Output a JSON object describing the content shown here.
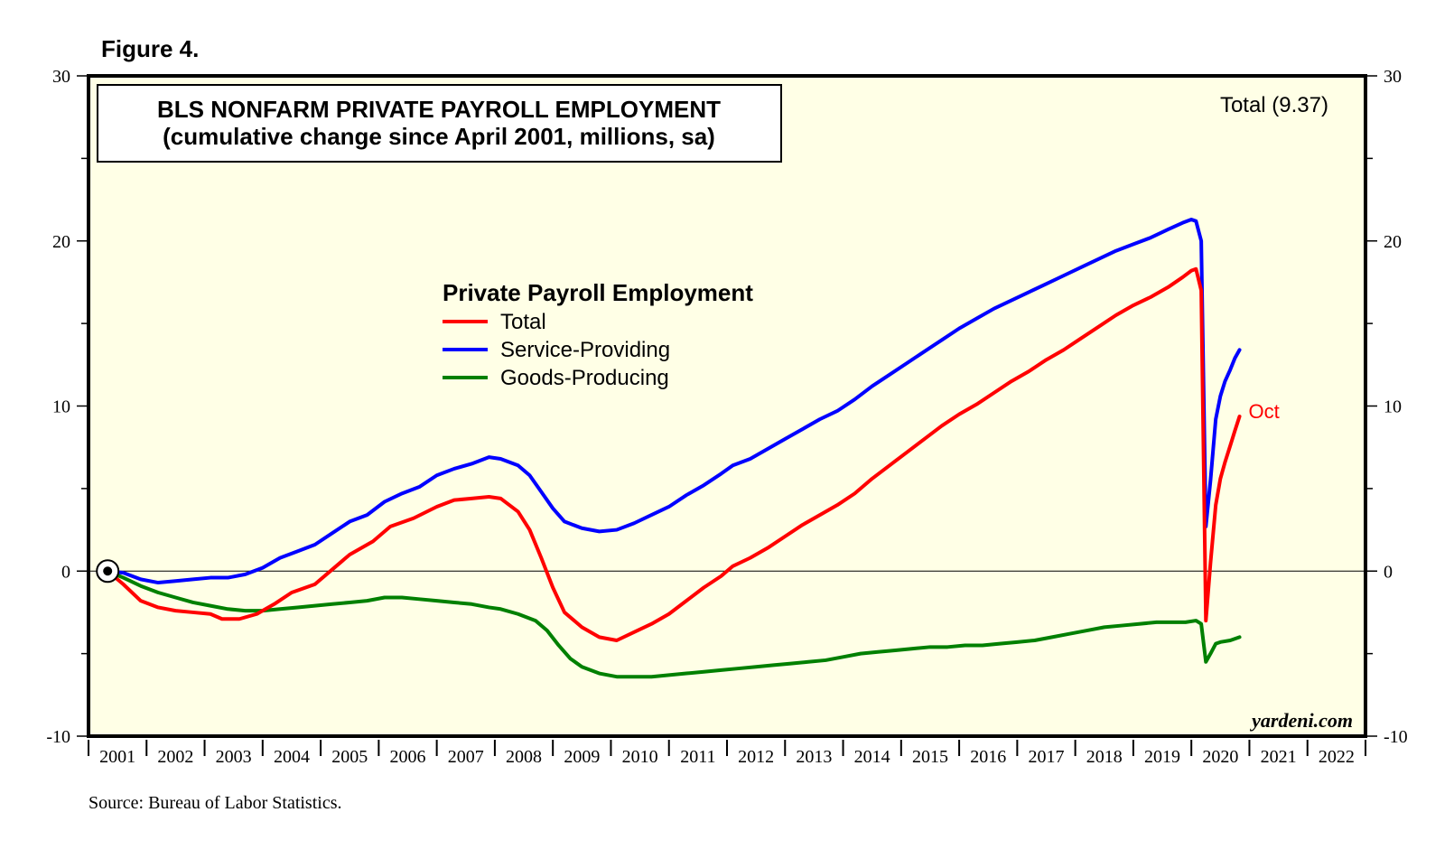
{
  "figure_label": "Figure 4.",
  "source": "Source: Bureau of Labor Statistics.",
  "watermark": "yardeni.com",
  "latest_label": "Total (9.37)",
  "end_annotation": "Oct",
  "colors": {
    "plot_bg": "#ffffe6",
    "total": "#ff0000",
    "service": "#0000ff",
    "goods": "#008000",
    "frame": "#000000"
  },
  "chart_data": {
    "type": "line",
    "title": "BLS NONFARM PRIVATE PAYROLL EMPLOYMENT",
    "subtitle": "(cumulative change since April 2001, millions, sa)",
    "legend_title": "Private Payroll Employment",
    "xlabel": "",
    "ylabel": "",
    "xlim": [
      2001.0,
      2023.0
    ],
    "ylim": [
      -10,
      30
    ],
    "y_ticks": [
      -10,
      0,
      10,
      20,
      30
    ],
    "y_tick_labels": [
      "-10",
      "0",
      "10",
      "20",
      "30"
    ],
    "x_tick_labels": [
      "2001",
      "2002",
      "2003",
      "2004",
      "2005",
      "2006",
      "2007",
      "2008",
      "2009",
      "2010",
      "2011",
      "2012",
      "2013",
      "2014",
      "2015",
      "2016",
      "2017",
      "2018",
      "2019",
      "2020",
      "2021",
      "2022"
    ],
    "grid": false,
    "zero_line": true,
    "origin_marker": [
      2001.33,
      0
    ],
    "series": [
      {
        "name": "Total",
        "color": "#ff0000",
        "points": [
          [
            2001.33,
            0
          ],
          [
            2001.6,
            -0.8
          ],
          [
            2001.9,
            -1.8
          ],
          [
            2002.2,
            -2.2
          ],
          [
            2002.5,
            -2.4
          ],
          [
            2002.8,
            -2.5
          ],
          [
            2003.1,
            -2.6
          ],
          [
            2003.3,
            -2.9
          ],
          [
            2003.6,
            -2.9
          ],
          [
            2003.9,
            -2.6
          ],
          [
            2004.2,
            -2.0
          ],
          [
            2004.5,
            -1.3
          ],
          [
            2004.9,
            -0.8
          ],
          [
            2005.2,
            0.1
          ],
          [
            2005.5,
            1.0
          ],
          [
            2005.9,
            1.8
          ],
          [
            2006.2,
            2.7
          ],
          [
            2006.6,
            3.2
          ],
          [
            2007.0,
            3.9
          ],
          [
            2007.3,
            4.3
          ],
          [
            2007.6,
            4.4
          ],
          [
            2007.9,
            4.5
          ],
          [
            2008.1,
            4.4
          ],
          [
            2008.4,
            3.6
          ],
          [
            2008.6,
            2.5
          ],
          [
            2008.8,
            0.8
          ],
          [
            2009.0,
            -1.0
          ],
          [
            2009.2,
            -2.5
          ],
          [
            2009.5,
            -3.4
          ],
          [
            2009.8,
            -4.0
          ],
          [
            2010.1,
            -4.2
          ],
          [
            2010.4,
            -3.7
          ],
          [
            2010.7,
            -3.2
          ],
          [
            2011.0,
            -2.6
          ],
          [
            2011.3,
            -1.8
          ],
          [
            2011.6,
            -1.0
          ],
          [
            2011.9,
            -0.3
          ],
          [
            2012.1,
            0.3
          ],
          [
            2012.4,
            0.8
          ],
          [
            2012.7,
            1.4
          ],
          [
            2013.0,
            2.1
          ],
          [
            2013.3,
            2.8
          ],
          [
            2013.6,
            3.4
          ],
          [
            2013.9,
            4.0
          ],
          [
            2014.2,
            4.7
          ],
          [
            2014.5,
            5.6
          ],
          [
            2014.8,
            6.4
          ],
          [
            2015.1,
            7.2
          ],
          [
            2015.4,
            8.0
          ],
          [
            2015.7,
            8.8
          ],
          [
            2016.0,
            9.5
          ],
          [
            2016.3,
            10.1
          ],
          [
            2016.6,
            10.8
          ],
          [
            2016.9,
            11.5
          ],
          [
            2017.2,
            12.1
          ],
          [
            2017.5,
            12.8
          ],
          [
            2017.8,
            13.4
          ],
          [
            2018.1,
            14.1
          ],
          [
            2018.4,
            14.8
          ],
          [
            2018.7,
            15.5
          ],
          [
            2019.0,
            16.1
          ],
          [
            2019.3,
            16.6
          ],
          [
            2019.6,
            17.2
          ],
          [
            2019.85,
            17.8
          ],
          [
            2020.0,
            18.2
          ],
          [
            2020.08,
            18.3
          ],
          [
            2020.17,
            17.0
          ],
          [
            2020.25,
            -3.0
          ],
          [
            2020.33,
            0.5
          ],
          [
            2020.42,
            4.0
          ],
          [
            2020.5,
            5.6
          ],
          [
            2020.58,
            6.6
          ],
          [
            2020.67,
            7.6
          ],
          [
            2020.75,
            8.5
          ],
          [
            2020.83,
            9.37
          ]
        ]
      },
      {
        "name": "Service-Providing",
        "color": "#0000ff",
        "points": [
          [
            2001.33,
            0
          ],
          [
            2001.6,
            -0.1
          ],
          [
            2001.9,
            -0.5
          ],
          [
            2002.2,
            -0.7
          ],
          [
            2002.5,
            -0.6
          ],
          [
            2002.8,
            -0.5
          ],
          [
            2003.1,
            -0.4
          ],
          [
            2003.4,
            -0.4
          ],
          [
            2003.7,
            -0.2
          ],
          [
            2004.0,
            0.2
          ],
          [
            2004.3,
            0.8
          ],
          [
            2004.6,
            1.2
          ],
          [
            2004.9,
            1.6
          ],
          [
            2005.2,
            2.3
          ],
          [
            2005.5,
            3.0
          ],
          [
            2005.8,
            3.4
          ],
          [
            2006.1,
            4.2
          ],
          [
            2006.4,
            4.7
          ],
          [
            2006.7,
            5.1
          ],
          [
            2007.0,
            5.8
          ],
          [
            2007.3,
            6.2
          ],
          [
            2007.6,
            6.5
          ],
          [
            2007.9,
            6.9
          ],
          [
            2008.1,
            6.8
          ],
          [
            2008.4,
            6.4
          ],
          [
            2008.6,
            5.8
          ],
          [
            2008.8,
            4.8
          ],
          [
            2009.0,
            3.8
          ],
          [
            2009.2,
            3.0
          ],
          [
            2009.5,
            2.6
          ],
          [
            2009.8,
            2.4
          ],
          [
            2010.1,
            2.5
          ],
          [
            2010.4,
            2.9
          ],
          [
            2010.7,
            3.4
          ],
          [
            2011.0,
            3.9
          ],
          [
            2011.3,
            4.6
          ],
          [
            2011.6,
            5.2
          ],
          [
            2011.9,
            5.9
          ],
          [
            2012.1,
            6.4
          ],
          [
            2012.4,
            6.8
          ],
          [
            2012.7,
            7.4
          ],
          [
            2013.0,
            8.0
          ],
          [
            2013.3,
            8.6
          ],
          [
            2013.6,
            9.2
          ],
          [
            2013.9,
            9.7
          ],
          [
            2014.2,
            10.4
          ],
          [
            2014.5,
            11.2
          ],
          [
            2014.8,
            11.9
          ],
          [
            2015.1,
            12.6
          ],
          [
            2015.4,
            13.3
          ],
          [
            2015.7,
            14.0
          ],
          [
            2016.0,
            14.7
          ],
          [
            2016.3,
            15.3
          ],
          [
            2016.6,
            15.9
          ],
          [
            2016.9,
            16.4
          ],
          [
            2017.2,
            16.9
          ],
          [
            2017.5,
            17.4
          ],
          [
            2017.8,
            17.9
          ],
          [
            2018.1,
            18.4
          ],
          [
            2018.4,
            18.9
          ],
          [
            2018.7,
            19.4
          ],
          [
            2019.0,
            19.8
          ],
          [
            2019.3,
            20.2
          ],
          [
            2019.6,
            20.7
          ],
          [
            2019.85,
            21.1
          ],
          [
            2020.0,
            21.3
          ],
          [
            2020.08,
            21.2
          ],
          [
            2020.17,
            20.0
          ],
          [
            2020.25,
            2.7
          ],
          [
            2020.33,
            5.5
          ],
          [
            2020.42,
            9.2
          ],
          [
            2020.5,
            10.6
          ],
          [
            2020.58,
            11.5
          ],
          [
            2020.67,
            12.2
          ],
          [
            2020.75,
            12.9
          ],
          [
            2020.83,
            13.4
          ]
        ]
      },
      {
        "name": "Goods-Producing",
        "color": "#008000",
        "points": [
          [
            2001.33,
            0
          ],
          [
            2001.6,
            -0.4
          ],
          [
            2001.9,
            -0.9
          ],
          [
            2002.2,
            -1.3
          ],
          [
            2002.5,
            -1.6
          ],
          [
            2002.8,
            -1.9
          ],
          [
            2003.1,
            -2.1
          ],
          [
            2003.4,
            -2.3
          ],
          [
            2003.7,
            -2.4
          ],
          [
            2004.0,
            -2.4
          ],
          [
            2004.3,
            -2.3
          ],
          [
            2004.6,
            -2.2
          ],
          [
            2004.9,
            -2.1
          ],
          [
            2005.2,
            -2.0
          ],
          [
            2005.5,
            -1.9
          ],
          [
            2005.8,
            -1.8
          ],
          [
            2006.1,
            -1.6
          ],
          [
            2006.4,
            -1.6
          ],
          [
            2006.7,
            -1.7
          ],
          [
            2007.0,
            -1.8
          ],
          [
            2007.3,
            -1.9
          ],
          [
            2007.6,
            -2.0
          ],
          [
            2007.9,
            -2.2
          ],
          [
            2008.1,
            -2.3
          ],
          [
            2008.4,
            -2.6
          ],
          [
            2008.7,
            -3.0
          ],
          [
            2008.9,
            -3.6
          ],
          [
            2009.1,
            -4.5
          ],
          [
            2009.3,
            -5.3
          ],
          [
            2009.5,
            -5.8
          ],
          [
            2009.8,
            -6.2
          ],
          [
            2010.1,
            -6.4
          ],
          [
            2010.4,
            -6.4
          ],
          [
            2010.7,
            -6.4
          ],
          [
            2011.0,
            -6.3
          ],
          [
            2011.3,
            -6.2
          ],
          [
            2011.6,
            -6.1
          ],
          [
            2011.9,
            -6.0
          ],
          [
            2012.2,
            -5.9
          ],
          [
            2012.5,
            -5.8
          ],
          [
            2012.8,
            -5.7
          ],
          [
            2013.1,
            -5.6
          ],
          [
            2013.4,
            -5.5
          ],
          [
            2013.7,
            -5.4
          ],
          [
            2014.0,
            -5.2
          ],
          [
            2014.3,
            -5.0
          ],
          [
            2014.6,
            -4.9
          ],
          [
            2014.9,
            -4.8
          ],
          [
            2015.2,
            -4.7
          ],
          [
            2015.5,
            -4.6
          ],
          [
            2015.8,
            -4.6
          ],
          [
            2016.1,
            -4.5
          ],
          [
            2016.4,
            -4.5
          ],
          [
            2016.7,
            -4.4
          ],
          [
            2017.0,
            -4.3
          ],
          [
            2017.3,
            -4.2
          ],
          [
            2017.6,
            -4.0
          ],
          [
            2017.9,
            -3.8
          ],
          [
            2018.2,
            -3.6
          ],
          [
            2018.5,
            -3.4
          ],
          [
            2018.8,
            -3.3
          ],
          [
            2019.1,
            -3.2
          ],
          [
            2019.4,
            -3.1
          ],
          [
            2019.7,
            -3.1
          ],
          [
            2019.9,
            -3.1
          ],
          [
            2020.08,
            -3.0
          ],
          [
            2020.17,
            -3.2
          ],
          [
            2020.25,
            -5.5
          ],
          [
            2020.33,
            -5.0
          ],
          [
            2020.42,
            -4.4
          ],
          [
            2020.5,
            -4.3
          ],
          [
            2020.67,
            -4.2
          ],
          [
            2020.83,
            -4.0
          ]
        ]
      }
    ]
  }
}
